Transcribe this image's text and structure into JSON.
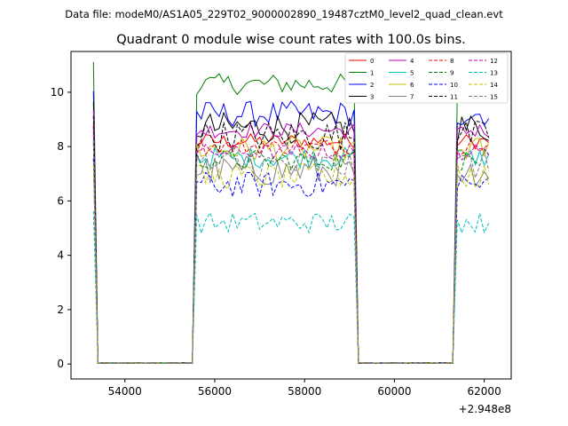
{
  "chart_data": {
    "type": "line",
    "suptitle": "Data file: modeM0/AS1A05_229T02_9000002890_19487cztM0_level2_quad_clean.evt",
    "title": "Quadrant 0 module wise count rates with 100.0s bins.",
    "xlabel": "",
    "ylabel": "",
    "x_offset_label": "+2.948e8",
    "xlim": [
      52800,
      62600
    ],
    "ylim": [
      -0.55,
      11.5
    ],
    "xticks": [
      54000,
      56000,
      58000,
      60000,
      62000
    ],
    "xtick_labels": [
      "54000",
      "56000",
      "58000",
      "60000",
      "62000"
    ],
    "yticks": [
      0,
      2,
      4,
      6,
      8,
      10
    ],
    "ytick_labels": [
      "0",
      "2",
      "4",
      "6",
      "8",
      "10"
    ],
    "grid": false,
    "legend": {
      "position": "top-right",
      "columns": 4
    },
    "x_start": 53300,
    "x_step": 100,
    "n_points": 89,
    "segments": [
      {
        "start": 53300,
        "end": 53350,
        "state": "on"
      },
      {
        "start": 53400,
        "end": 55500,
        "state": "off"
      },
      {
        "start": 55600,
        "end": 59150,
        "state": "on"
      },
      {
        "start": 59250,
        "end": 61300,
        "state": "off"
      },
      {
        "start": 61400,
        "end": 62100,
        "state": "on"
      }
    ],
    "series": [
      {
        "name": "0",
        "color": "#ff0000",
        "dash": "solid",
        "base": 8.2
      },
      {
        "name": "1",
        "color": "#008000",
        "dash": "solid",
        "base": 10.3
      },
      {
        "name": "2",
        "color": "#0000ff",
        "dash": "solid",
        "base": 9.2
      },
      {
        "name": "3",
        "color": "#000000",
        "dash": "solid",
        "base": 8.7
      },
      {
        "name": "4",
        "color": "#bf00bf",
        "dash": "solid",
        "base": 8.6
      },
      {
        "name": "5",
        "color": "#00bfbf",
        "dash": "solid",
        "base": 7.6
      },
      {
        "name": "6",
        "color": "#bfbf00",
        "dash": "solid",
        "base": 7.9
      },
      {
        "name": "7",
        "color": "#808080",
        "dash": "solid",
        "base": 7.1
      },
      {
        "name": "8",
        "color": "#ff0000",
        "dash": "dashed",
        "base": 8.0
      },
      {
        "name": "9",
        "color": "#008000",
        "dash": "dashed",
        "base": 7.5
      },
      {
        "name": "10",
        "color": "#0000ff",
        "dash": "dashed",
        "base": 6.6
      },
      {
        "name": "11",
        "color": "#000000",
        "dash": "dashed",
        "base": 8.4
      },
      {
        "name": "12",
        "color": "#bf00bf",
        "dash": "dashed",
        "base": 7.8
      },
      {
        "name": "13",
        "color": "#00bfbf",
        "dash": "dashed",
        "base": 5.2
      },
      {
        "name": "14",
        "color": "#bfbf00",
        "dash": "dashed",
        "base": 6.9
      },
      {
        "name": "15",
        "color": "#808080",
        "dash": "dashed",
        "base": 7.3
      }
    ]
  }
}
